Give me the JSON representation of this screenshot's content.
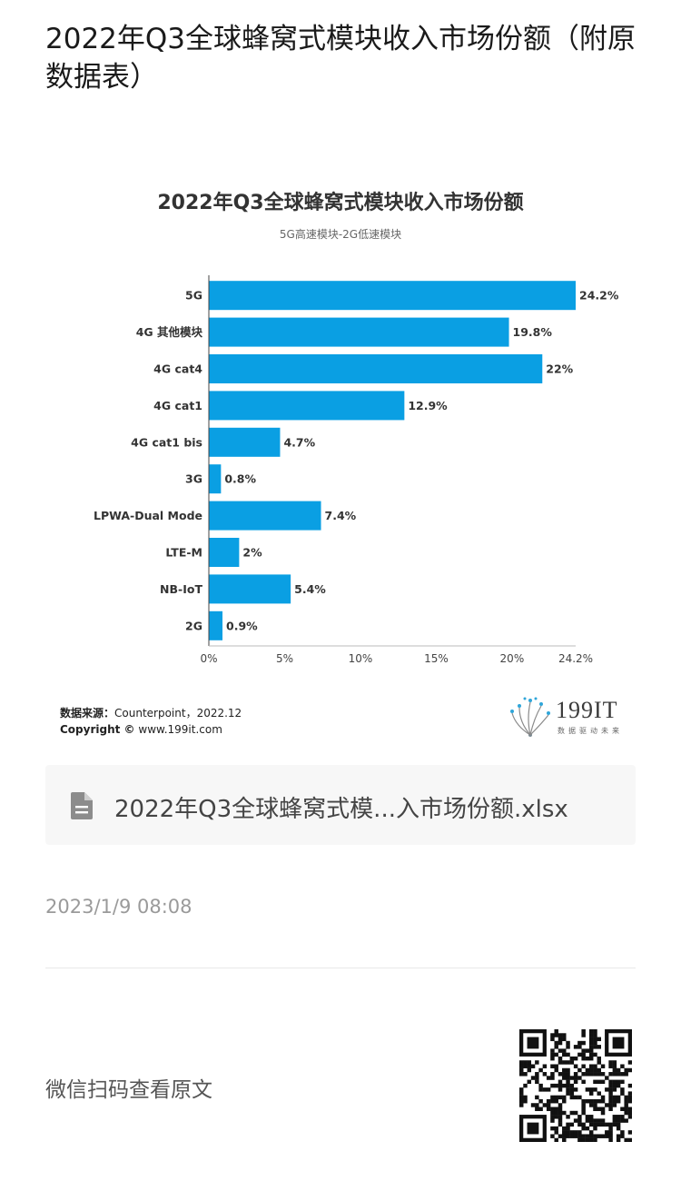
{
  "article": {
    "title": "2022年Q3全球蜂窝式模块收入市场份额（附原数据表）",
    "file_name": "2022年Q3全球蜂窝式模...入市场份额.xlsx",
    "file_icon": "document-icon",
    "timestamp": "2023/1/9 08:08",
    "wechat_prompt": "微信扫码查看原文"
  },
  "chart_meta": {
    "source_label": "数据来源：",
    "source_text": "Counterpoint，2022.12",
    "copyright_label": "Copyright ©",
    "copyright_text": "www.199it.com",
    "logo_text": "199IT",
    "logo_slogan": "数据驱动未来"
  },
  "chart_data": {
    "type": "bar",
    "orientation": "horizontal",
    "title": "2022年Q3全球蜂窝式模块收入市场份额",
    "subtitle": "5G高速模块-2G低速模块",
    "categories": [
      "5G",
      "4G 其他模块",
      "4G cat4",
      "4G cat1",
      "4G cat1 bis",
      "3G",
      "LPWA-Dual Mode",
      "LTE-M",
      "NB-IoT",
      "2G"
    ],
    "values": [
      24.2,
      19.8,
      22,
      12.9,
      4.7,
      0.8,
      7.4,
      2,
      5.4,
      0.9
    ],
    "value_labels": [
      "24.2%",
      "19.8%",
      "22%",
      "12.9%",
      "4.7%",
      "0.8%",
      "7.4%",
      "2%",
      "5.4%",
      "0.9%"
    ],
    "x_ticks": [
      0,
      5,
      10,
      15,
      20,
      24.2
    ],
    "x_tick_labels": [
      "0%",
      "5%",
      "10%",
      "15%",
      "20%",
      "24.2%"
    ],
    "xlim": [
      0,
      24.2
    ],
    "grid": false,
    "bar_color": "#0a9fe3"
  }
}
